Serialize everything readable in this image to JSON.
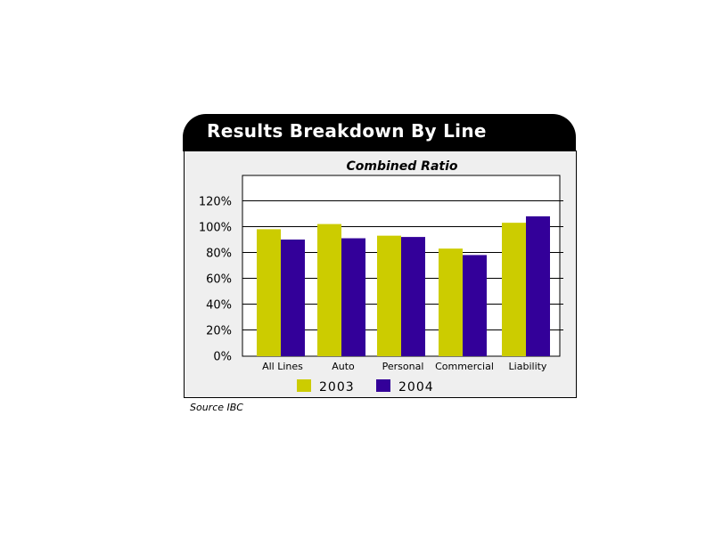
{
  "header": {
    "title": "Results Breakdown By Line"
  },
  "source": "Source IBC",
  "chart_data": {
    "type": "bar",
    "title": "Combined Ratio",
    "categories": [
      "All Lines",
      "Auto",
      "Personal",
      "Commercial",
      "Liability"
    ],
    "series": [
      {
        "name": "2003",
        "color": "#cccc00",
        "values": [
          98,
          102,
          93,
          83,
          103
        ]
      },
      {
        "name": "2004",
        "color": "#330099",
        "values": [
          90,
          91,
          92,
          78,
          108
        ]
      }
    ],
    "yticks": [
      "0%",
      "20%",
      "40%",
      "60%",
      "80%",
      "100%",
      "120%"
    ],
    "ylim": [
      0,
      140
    ],
    "grid": true,
    "legend": "bottom"
  }
}
